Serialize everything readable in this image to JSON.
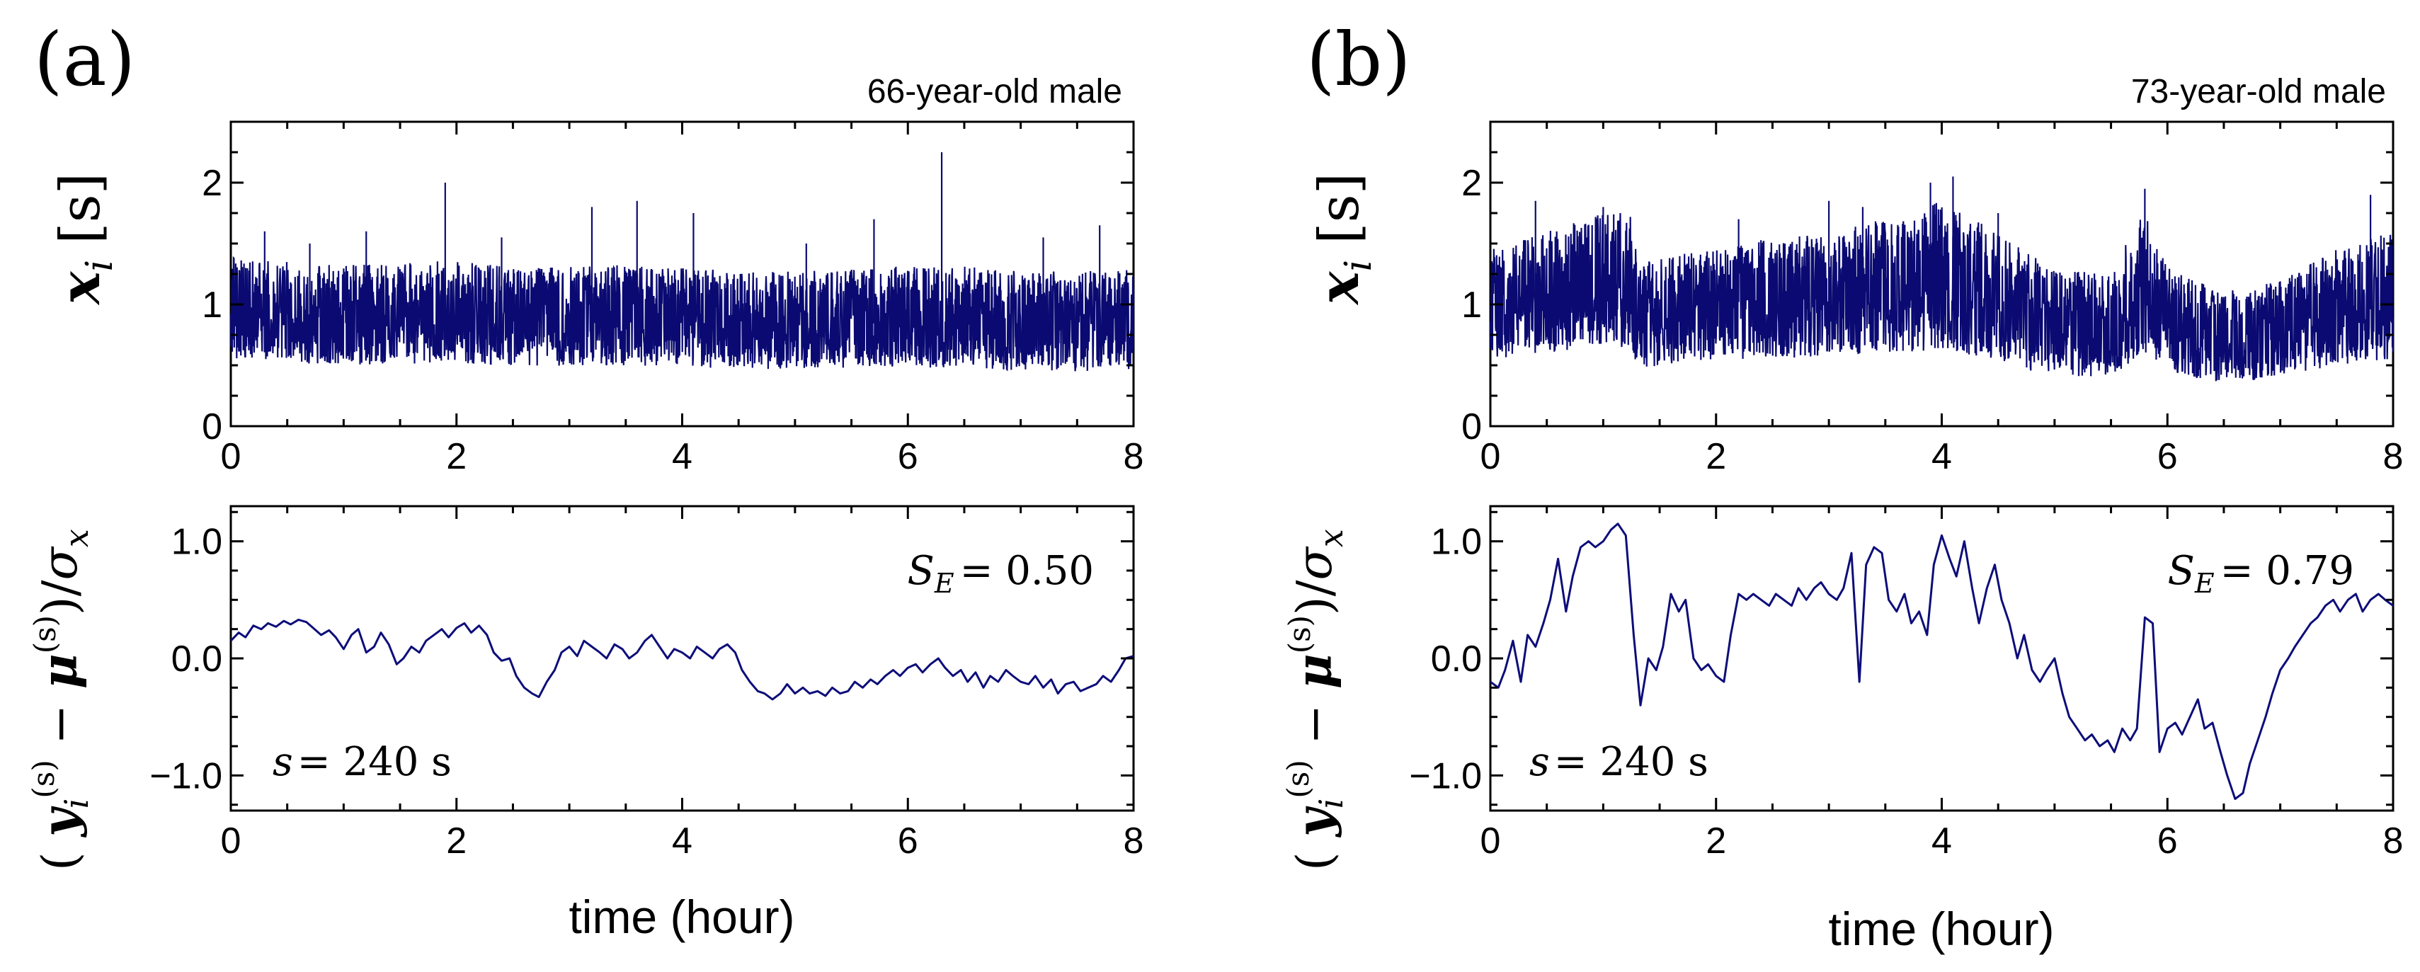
{
  "chart_data": [
    {
      "panel_label": "(a)",
      "subject": "66-year-old male",
      "top": {
        "type": "line",
        "ylabel": {
          "var": "x",
          "sub": "i",
          "unit": "[s]"
        },
        "xlim": [
          0,
          8
        ],
        "ylim": [
          0,
          2.5
        ],
        "xticks": [
          "0",
          "2",
          "4",
          "6",
          "8"
        ],
        "yticks": [
          "0",
          "1",
          "2"
        ],
        "ytick_values": [
          0,
          1,
          2
        ],
        "trace": {
          "hours": [
            0,
            0.5,
            1,
            1.5,
            2,
            2.5,
            3,
            3.5,
            4,
            4.5,
            5,
            5.5,
            6,
            6.5,
            7,
            7.5,
            8
          ],
          "mid": [
            0.9,
            0.88,
            0.86,
            0.87,
            0.86,
            0.84,
            0.85,
            0.86,
            0.84,
            0.82,
            0.83,
            0.84,
            0.85,
            0.84,
            0.82,
            0.81,
            0.83
          ],
          "low": [
            0.55,
            0.52,
            0.5,
            0.51,
            0.52,
            0.5,
            0.49,
            0.5,
            0.48,
            0.47,
            0.46,
            0.48,
            0.49,
            0.47,
            0.46,
            0.45,
            0.47
          ],
          "high": [
            1.4,
            1.35,
            1.32,
            1.34,
            1.36,
            1.3,
            1.32,
            1.33,
            1.3,
            1.28,
            1.27,
            1.3,
            1.32,
            1.31,
            1.28,
            1.27,
            1.3
          ],
          "spikes": [
            [
              0.3,
              1.6
            ],
            [
              0.7,
              1.5
            ],
            [
              1.2,
              1.6
            ],
            [
              1.9,
              2.0
            ],
            [
              2.4,
              1.55
            ],
            [
              3.2,
              1.8
            ],
            [
              3.6,
              1.85
            ],
            [
              4.1,
              1.75
            ],
            [
              5.1,
              1.5
            ],
            [
              5.7,
              1.7
            ],
            [
              6.3,
              2.25
            ],
            [
              7.2,
              1.55
            ],
            [
              7.7,
              1.65
            ]
          ]
        }
      },
      "bottom": {
        "type": "line",
        "ylabel": "(y_i^(s) − μ^(s))/σ_x",
        "xlim": [
          0,
          8
        ],
        "ylim": [
          -1.3,
          1.3
        ],
        "xticks": [
          "0",
          "2",
          "4",
          "6",
          "8"
        ],
        "yticks": [
          "1.0",
          "0.0",
          "−1.0"
        ],
        "ytick_values": [
          1,
          0,
          -1
        ],
        "xlabel": "time (hour)",
        "se_label": "S",
        "se_sub": "E",
        "se_value": "= 0.50",
        "s_label": "s",
        "s_value": "= 240 s",
        "x": [
          0,
          0.07,
          0.13,
          0.2,
          0.27,
          0.33,
          0.4,
          0.47,
          0.53,
          0.6,
          0.67,
          0.73,
          0.8,
          0.87,
          0.93,
          1.0,
          1.07,
          1.13,
          1.2,
          1.27,
          1.33,
          1.4,
          1.47,
          1.53,
          1.6,
          1.67,
          1.73,
          1.8,
          1.87,
          1.93,
          2.0,
          2.07,
          2.13,
          2.2,
          2.27,
          2.33,
          2.4,
          2.47,
          2.53,
          2.6,
          2.67,
          2.73,
          2.8,
          2.87,
          2.93,
          3.0,
          3.07,
          3.13,
          3.2,
          3.27,
          3.33,
          3.4,
          3.47,
          3.53,
          3.6,
          3.67,
          3.73,
          3.8,
          3.87,
          3.93,
          4.0,
          4.07,
          4.13,
          4.2,
          4.27,
          4.33,
          4.4,
          4.47,
          4.53,
          4.6,
          4.67,
          4.73,
          4.8,
          4.87,
          4.93,
          5.0,
          5.07,
          5.13,
          5.2,
          5.27,
          5.33,
          5.4,
          5.47,
          5.53,
          5.6,
          5.67,
          5.73,
          5.8,
          5.87,
          5.93,
          6.0,
          6.07,
          6.13,
          6.2,
          6.27,
          6.33,
          6.4,
          6.47,
          6.53,
          6.6,
          6.67,
          6.73,
          6.8,
          6.87,
          6.93,
          7.0,
          7.07,
          7.13,
          7.2,
          7.27,
          7.33,
          7.4,
          7.47,
          7.53,
          7.6,
          7.67,
          7.73,
          7.8,
          7.87,
          7.93,
          8.0
        ],
        "y": [
          0.15,
          0.22,
          0.18,
          0.28,
          0.25,
          0.3,
          0.27,
          0.32,
          0.29,
          0.33,
          0.31,
          0.26,
          0.2,
          0.24,
          0.18,
          0.08,
          0.2,
          0.25,
          0.05,
          0.1,
          0.22,
          0.12,
          -0.05,
          0.0,
          0.1,
          0.05,
          0.15,
          0.2,
          0.25,
          0.18,
          0.26,
          0.3,
          0.22,
          0.28,
          0.2,
          0.05,
          -0.02,
          0.0,
          -0.15,
          -0.25,
          -0.3,
          -0.33,
          -0.2,
          -0.1,
          0.05,
          0.1,
          0.02,
          0.15,
          0.1,
          0.05,
          0.0,
          0.12,
          0.08,
          0.0,
          0.05,
          0.15,
          0.2,
          0.1,
          0.0,
          0.08,
          0.05,
          0.0,
          0.1,
          0.05,
          0.0,
          0.08,
          0.12,
          0.05,
          -0.1,
          -0.2,
          -0.28,
          -0.3,
          -0.35,
          -0.3,
          -0.22,
          -0.3,
          -0.25,
          -0.3,
          -0.28,
          -0.32,
          -0.25,
          -0.3,
          -0.28,
          -0.2,
          -0.25,
          -0.18,
          -0.22,
          -0.15,
          -0.1,
          -0.15,
          -0.08,
          -0.05,
          -0.12,
          -0.05,
          0.0,
          -0.08,
          -0.15,
          -0.1,
          -0.2,
          -0.12,
          -0.25,
          -0.15,
          -0.2,
          -0.1,
          -0.15,
          -0.2,
          -0.22,
          -0.15,
          -0.25,
          -0.18,
          -0.3,
          -0.22,
          -0.2,
          -0.28,
          -0.25,
          -0.22,
          -0.15,
          -0.2,
          -0.1,
          0.0,
          0.02
        ]
      }
    },
    {
      "panel_label": "(b)",
      "subject": "73-year-old male",
      "top": {
        "type": "line",
        "ylabel": {
          "var": "x",
          "sub": "i",
          "unit": "[s]"
        },
        "xlim": [
          0,
          8
        ],
        "ylim": [
          0,
          2.5
        ],
        "xticks": [
          "0",
          "2",
          "4",
          "6",
          "8"
        ],
        "yticks": [
          "0",
          "1",
          "2"
        ],
        "ytick_values": [
          0,
          1,
          2
        ],
        "trace": {
          "hours": [
            0,
            0.5,
            1,
            1.25,
            1.3,
            1.5,
            2,
            2.5,
            3,
            3.5,
            4,
            4.5,
            4.8,
            5,
            5.5,
            5.8,
            6,
            6.5,
            7,
            7.5,
            8
          ],
          "mid": [
            0.95,
            1.05,
            1.15,
            1.15,
            0.9,
            0.95,
            1.0,
            1.05,
            1.1,
            1.15,
            1.2,
            1.1,
            0.95,
            0.85,
            0.8,
            1.0,
            0.85,
            0.7,
            0.75,
            0.9,
            1.0
          ],
          "low": [
            0.55,
            0.6,
            0.65,
            0.65,
            0.45,
            0.5,
            0.55,
            0.55,
            0.58,
            0.6,
            0.62,
            0.55,
            0.45,
            0.42,
            0.4,
            0.6,
            0.45,
            0.35,
            0.4,
            0.5,
            0.55
          ],
          "high": [
            1.45,
            1.6,
            1.75,
            1.75,
            1.35,
            1.4,
            1.45,
            1.55,
            1.6,
            1.7,
            1.85,
            1.6,
            1.4,
            1.3,
            1.25,
            1.8,
            1.3,
            1.1,
            1.2,
            1.45,
            1.6
          ],
          "spikes": [
            [
              0.4,
              1.85
            ],
            [
              1.0,
              1.8
            ],
            [
              2.2,
              1.7
            ],
            [
              3.0,
              1.85
            ],
            [
              3.3,
              1.8
            ],
            [
              3.9,
              2.0
            ],
            [
              4.1,
              2.05
            ],
            [
              4.5,
              1.75
            ],
            [
              5.8,
              1.95
            ],
            [
              7.8,
              1.9
            ]
          ]
        }
      },
      "bottom": {
        "type": "line",
        "ylabel": "(y_i^(s) − μ^(s))/σ_x",
        "xlim": [
          0,
          8
        ],
        "ylim": [
          -1.3,
          1.3
        ],
        "xticks": [
          "0",
          "2",
          "4",
          "6",
          "8"
        ],
        "yticks": [
          "1.0",
          "0.0",
          "−1.0"
        ],
        "ytick_values": [
          1,
          0,
          -1
        ],
        "xlabel": "time (hour)",
        "se_label": "S",
        "se_sub": "E",
        "se_value": "= 0.79",
        "s_label": "s",
        "s_value": "= 240 s",
        "x": [
          0,
          0.07,
          0.13,
          0.2,
          0.27,
          0.33,
          0.4,
          0.47,
          0.53,
          0.6,
          0.67,
          0.73,
          0.8,
          0.87,
          0.93,
          1.0,
          1.07,
          1.13,
          1.2,
          1.27,
          1.33,
          1.4,
          1.47,
          1.53,
          1.6,
          1.67,
          1.73,
          1.8,
          1.87,
          1.93,
          2.0,
          2.07,
          2.13,
          2.2,
          2.27,
          2.33,
          2.4,
          2.47,
          2.53,
          2.6,
          2.67,
          2.73,
          2.8,
          2.87,
          2.93,
          3.0,
          3.07,
          3.13,
          3.2,
          3.27,
          3.33,
          3.4,
          3.47,
          3.53,
          3.6,
          3.67,
          3.73,
          3.8,
          3.87,
          3.93,
          4.0,
          4.07,
          4.13,
          4.2,
          4.27,
          4.33,
          4.4,
          4.47,
          4.53,
          4.6,
          4.67,
          4.73,
          4.8,
          4.87,
          4.93,
          5.0,
          5.07,
          5.13,
          5.2,
          5.27,
          5.33,
          5.4,
          5.47,
          5.53,
          5.6,
          5.67,
          5.73,
          5.8,
          5.87,
          5.93,
          6.0,
          6.07,
          6.13,
          6.2,
          6.27,
          6.33,
          6.4,
          6.47,
          6.53,
          6.6,
          6.67,
          6.73,
          6.8,
          6.87,
          6.93,
          7.0,
          7.07,
          7.13,
          7.2,
          7.27,
          7.33,
          7.4,
          7.47,
          7.53,
          7.6,
          7.67,
          7.73,
          7.8,
          7.87,
          7.93,
          8.0
        ],
        "y": [
          -0.2,
          -0.25,
          -0.1,
          0.15,
          -0.2,
          0.2,
          0.1,
          0.3,
          0.5,
          0.85,
          0.4,
          0.7,
          0.95,
          1.0,
          0.95,
          1.0,
          1.1,
          1.15,
          1.05,
          0.2,
          -0.4,
          0.0,
          -0.1,
          0.1,
          0.55,
          0.4,
          0.5,
          0.0,
          -0.1,
          -0.05,
          -0.15,
          -0.2,
          0.2,
          0.55,
          0.5,
          0.55,
          0.5,
          0.45,
          0.55,
          0.5,
          0.45,
          0.6,
          0.5,
          0.6,
          0.65,
          0.55,
          0.5,
          0.6,
          0.9,
          -0.2,
          0.8,
          0.95,
          0.9,
          0.5,
          0.4,
          0.55,
          0.3,
          0.4,
          0.2,
          0.8,
          1.05,
          0.85,
          0.7,
          1.0,
          0.6,
          0.3,
          0.6,
          0.8,
          0.5,
          0.3,
          0.0,
          0.2,
          -0.1,
          -0.2,
          -0.1,
          0.0,
          -0.3,
          -0.5,
          -0.6,
          -0.7,
          -0.65,
          -0.75,
          -0.7,
          -0.8,
          -0.6,
          -0.7,
          -0.6,
          0.35,
          0.3,
          -0.8,
          -0.6,
          -0.55,
          -0.65,
          -0.5,
          -0.35,
          -0.6,
          -0.55,
          -0.8,
          -1.0,
          -1.2,
          -1.15,
          -0.9,
          -0.7,
          -0.5,
          -0.3,
          -0.1,
          0.0,
          0.1,
          0.2,
          0.3,
          0.35,
          0.45,
          0.5,
          0.4,
          0.5,
          0.55,
          0.4,
          0.5,
          0.55,
          0.5,
          0.45
        ]
      }
    }
  ],
  "colors": {
    "trace": "#0d0d7a",
    "axis": "#000000"
  }
}
